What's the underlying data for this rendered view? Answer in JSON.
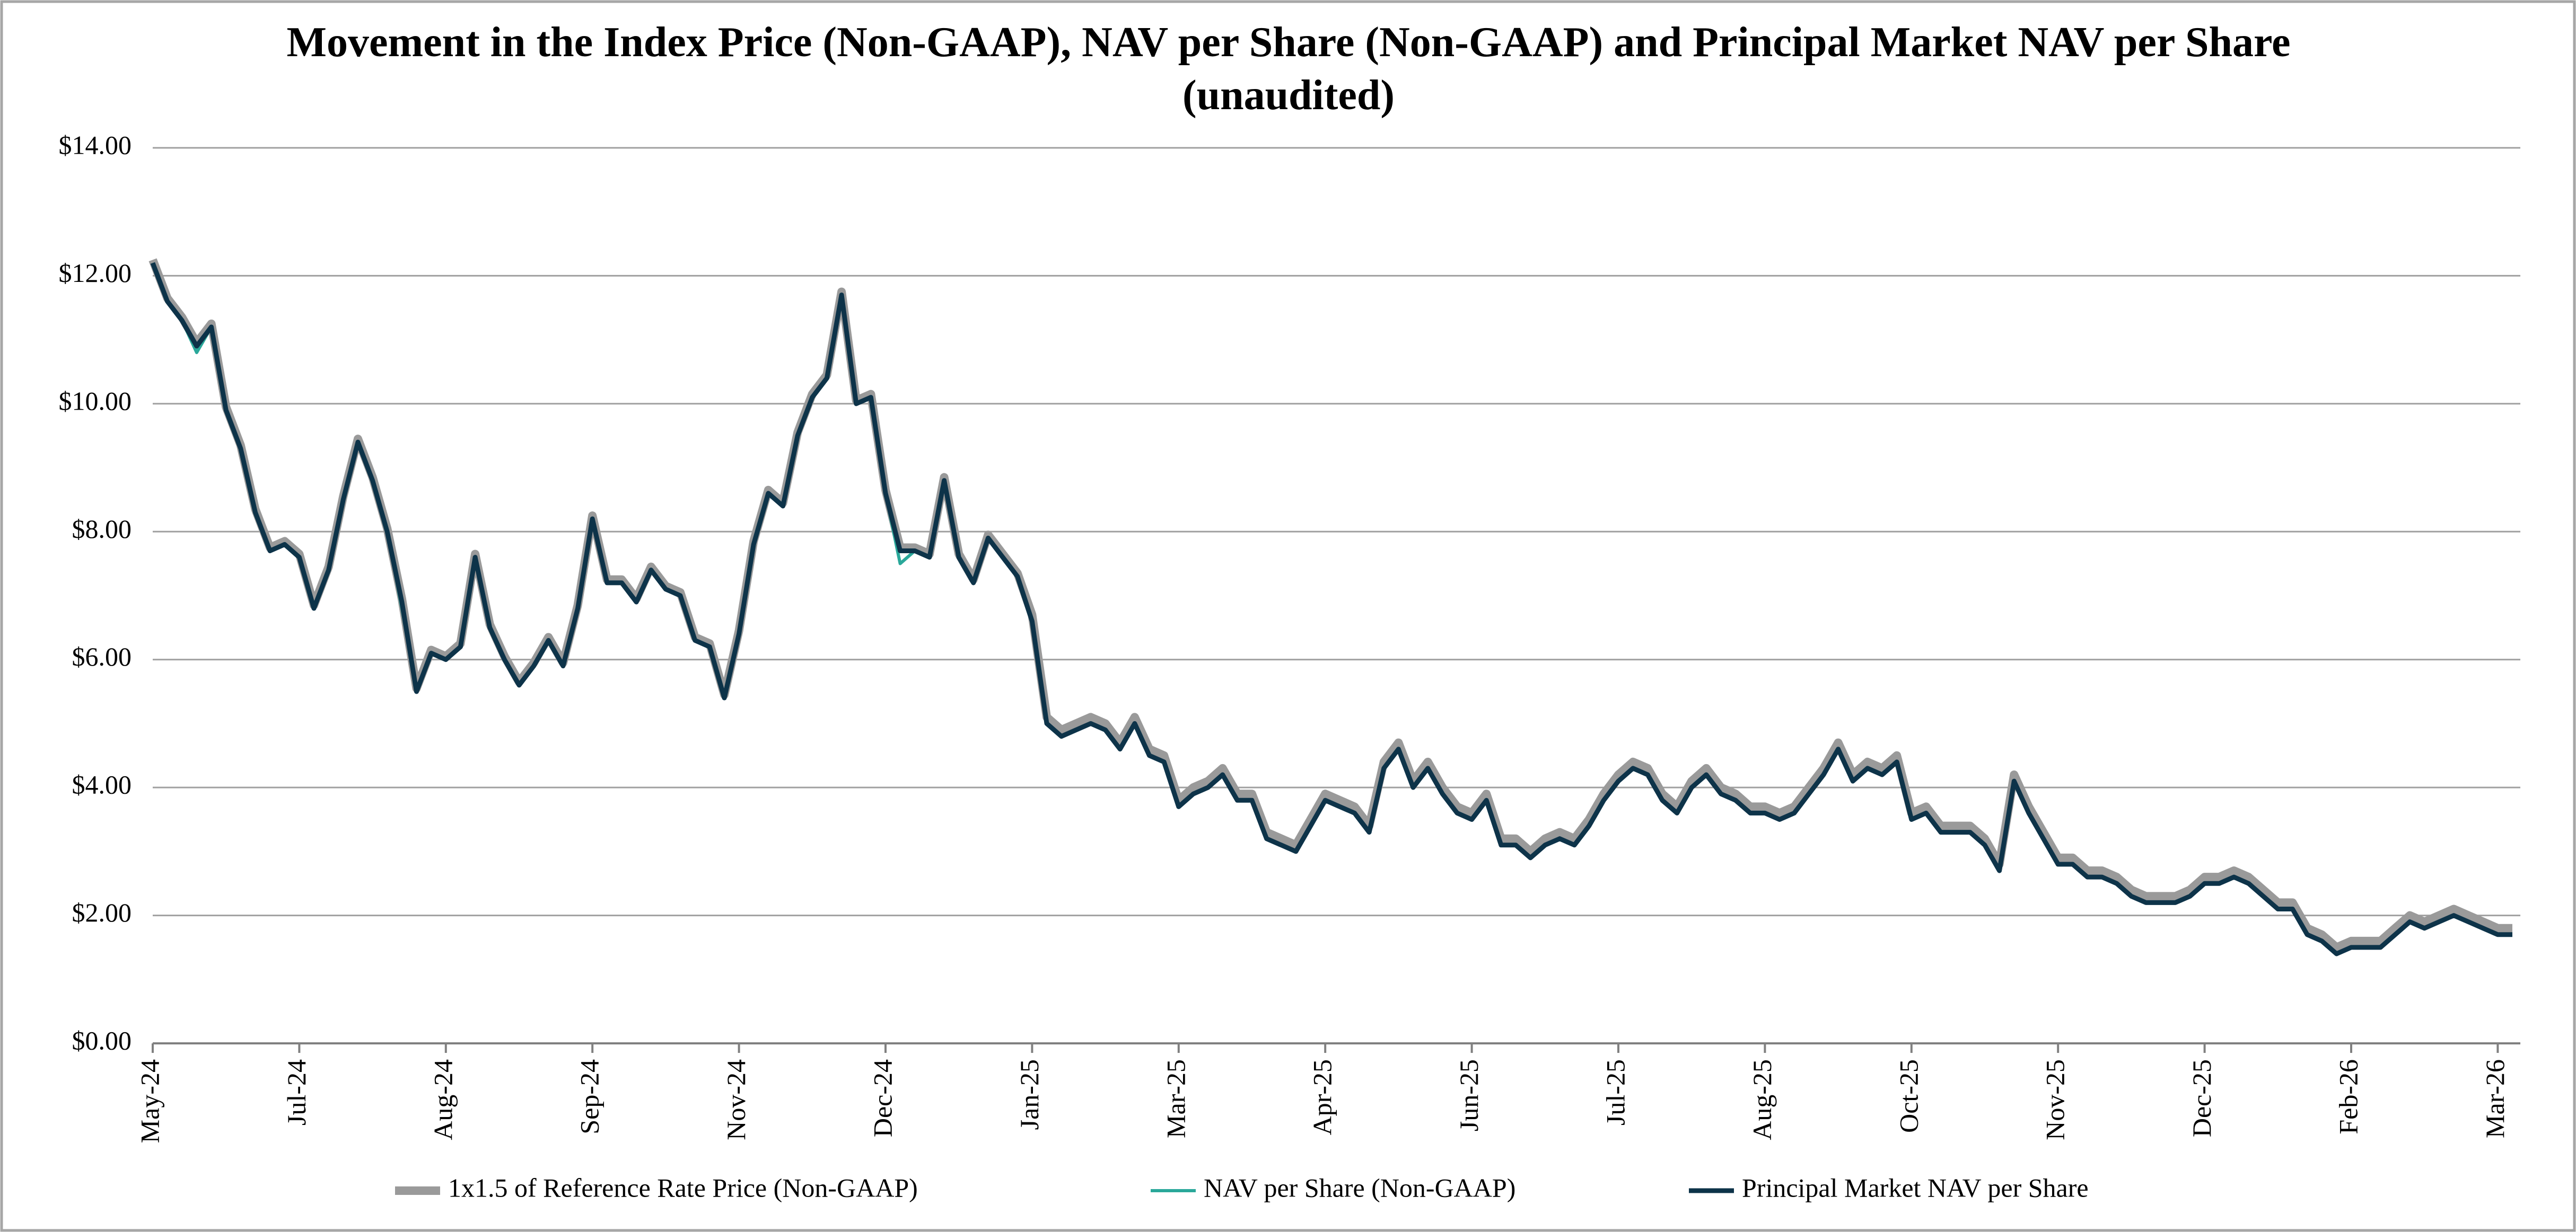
{
  "chart_data": {
    "type": "line",
    "title": "Movement in the Index Price (Non-GAAP), NAV per Share (Non-GAAP) and Principal Market NAV per Share (unaudited)",
    "categories": [
      "May-24",
      null,
      null,
      null,
      null,
      null,
      null,
      null,
      null,
      null,
      "Jul-24",
      null,
      null,
      null,
      null,
      null,
      null,
      null,
      null,
      null,
      "Aug-24",
      null,
      null,
      null,
      null,
      null,
      null,
      null,
      null,
      null,
      "Sep-24",
      null,
      null,
      null,
      null,
      null,
      null,
      null,
      null,
      null,
      "Nov-24",
      null,
      null,
      null,
      null,
      null,
      null,
      null,
      null,
      null,
      "Dec-24",
      null,
      null,
      null,
      null,
      null,
      null,
      null,
      null,
      null,
      "Jan-25",
      null,
      null,
      null,
      null,
      null,
      null,
      null,
      null,
      null,
      "Mar-25",
      null,
      null,
      null,
      null,
      null,
      null,
      null,
      null,
      null,
      "Apr-25",
      null,
      null,
      null,
      null,
      null,
      null,
      null,
      null,
      null,
      "Jun-25",
      null,
      null,
      null,
      null,
      null,
      null,
      null,
      null,
      null,
      "Jul-25",
      null,
      null,
      null,
      null,
      null,
      null,
      null,
      null,
      null,
      "Aug-25",
      null,
      null,
      null,
      null,
      null,
      null,
      null,
      null,
      null,
      "Oct-25",
      null,
      null,
      null,
      null,
      null,
      null,
      null,
      null,
      null,
      "Nov-25",
      null,
      null,
      null,
      null,
      null,
      null,
      null,
      null,
      null,
      "Dec-25",
      null,
      null,
      null,
      null,
      null,
      null,
      null,
      null,
      null,
      "Feb-26",
      null,
      null,
      null,
      null,
      null,
      null,
      null,
      null,
      null,
      "Mar-26",
      null
    ],
    "series": [
      {
        "name": "1x1.5 of Reference Rate Price (Non-GAAP)",
        "color": "#9a9a9a",
        "values": [
          12.25,
          11.65,
          11.35,
          10.95,
          11.25,
          9.95,
          9.35,
          8.35,
          7.75,
          7.85,
          7.65,
          6.85,
          7.45,
          8.55,
          9.45,
          8.85,
          8.05,
          6.95,
          5.55,
          6.15,
          6.05,
          6.25,
          7.65,
          6.55,
          6.05,
          5.65,
          5.95,
          6.35,
          5.95,
          6.85,
          8.25,
          7.25,
          7.25,
          6.95,
          7.45,
          7.15,
          7.05,
          6.35,
          6.25,
          5.45,
          6.45,
          7.85,
          8.65,
          8.45,
          9.55,
          10.15,
          10.45,
          11.75,
          10.05,
          10.15,
          8.65,
          7.75,
          7.75,
          7.65,
          8.85,
          7.65,
          7.25,
          7.95,
          7.65,
          7.35,
          6.7,
          5.1,
          4.9,
          5.0,
          5.1,
          5.0,
          4.7,
          5.1,
          4.6,
          4.5,
          3.8,
          4.0,
          4.1,
          4.3,
          3.9,
          3.9,
          3.3,
          3.2,
          3.1,
          3.5,
          3.9,
          3.8,
          3.7,
          3.4,
          4.4,
          4.7,
          4.1,
          4.4,
          4.0,
          3.7,
          3.6,
          3.9,
          3.2,
          3.2,
          3.0,
          3.2,
          3.3,
          3.2,
          3.5,
          3.9,
          4.2,
          4.4,
          4.3,
          3.9,
          3.7,
          4.1,
          4.3,
          4.0,
          3.9,
          3.7,
          3.7,
          3.6,
          3.7,
          4.0,
          4.3,
          4.7,
          4.2,
          4.4,
          4.3,
          4.5,
          3.6,
          3.7,
          3.4,
          3.4,
          3.4,
          3.2,
          2.8,
          4.2,
          3.7,
          3.3,
          2.9,
          2.9,
          2.7,
          2.7,
          2.6,
          2.4,
          2.3,
          2.3,
          2.3,
          2.4,
          2.6,
          2.6,
          2.7,
          2.6,
          2.4,
          2.2,
          2.2,
          1.8,
          1.7,
          1.5,
          1.6,
          1.6,
          1.6,
          1.8,
          2.0,
          1.9,
          2.0,
          2.1,
          2.0,
          1.9,
          1.8,
          1.8
        ]
      },
      {
        "name": "NAV per Share (Non-GAAP)",
        "color": "#2aa89a",
        "values": [
          12.2,
          11.6,
          11.3,
          10.8,
          11.2,
          9.9,
          9.3,
          8.3,
          7.7,
          7.8,
          7.6,
          6.8,
          7.4,
          8.5,
          9.4,
          8.8,
          8.0,
          6.8,
          5.5,
          6.1,
          6.0,
          6.2,
          7.6,
          6.5,
          6.0,
          5.6,
          5.9,
          6.3,
          5.9,
          6.8,
          8.2,
          7.2,
          7.2,
          6.9,
          7.4,
          7.1,
          7.0,
          6.3,
          6.2,
          5.4,
          6.4,
          7.8,
          8.6,
          8.4,
          9.5,
          10.1,
          10.4,
          11.7,
          10.0,
          10.1,
          8.6,
          7.5,
          7.7,
          7.6,
          8.8,
          7.6,
          7.2,
          7.9,
          7.6,
          7.3,
          6.6,
          5.0,
          4.8,
          4.9,
          5.0,
          4.9,
          4.6,
          5.0,
          4.5,
          4.4,
          3.7,
          3.9,
          4.0,
          4.2,
          3.8,
          3.8,
          3.2,
          3.1,
          3.0,
          3.4,
          3.8,
          3.7,
          3.6,
          3.3,
          4.3,
          4.6,
          4.0,
          4.3,
          3.9,
          3.6,
          3.5,
          3.8,
          3.1,
          3.1,
          2.9,
          3.1,
          3.2,
          3.1,
          3.4,
          3.8,
          4.1,
          4.3,
          4.2,
          3.8,
          3.6,
          4.0,
          4.2,
          3.9,
          3.8,
          3.6,
          3.6,
          3.5,
          3.6,
          3.9,
          4.2,
          4.6,
          4.1,
          4.3,
          4.2,
          4.4,
          3.5,
          3.6,
          3.3,
          3.3,
          3.3,
          3.1,
          2.7,
          4.1,
          3.6,
          3.2,
          2.8,
          2.8,
          2.6,
          2.6,
          2.5,
          2.3,
          2.2,
          2.2,
          2.2,
          2.3,
          2.5,
          2.5,
          2.6,
          2.5,
          2.3,
          2.1,
          2.1,
          1.7,
          1.6,
          1.4,
          1.5,
          1.5,
          1.5,
          1.7,
          1.9,
          1.8,
          1.9,
          2.0,
          1.9,
          1.8,
          1.7,
          1.7
        ]
      },
      {
        "name": "Principal Market NAV per Share",
        "color": "#0d3349",
        "values": [
          12.2,
          11.6,
          11.3,
          10.9,
          11.2,
          9.9,
          9.3,
          8.3,
          7.7,
          7.8,
          7.6,
          6.8,
          7.4,
          8.5,
          9.4,
          8.8,
          8.0,
          6.9,
          5.5,
          6.1,
          6.0,
          6.2,
          7.6,
          6.5,
          6.0,
          5.6,
          5.9,
          6.3,
          5.9,
          6.8,
          8.2,
          7.2,
          7.2,
          6.9,
          7.4,
          7.1,
          7.0,
          6.3,
          6.2,
          5.4,
          6.4,
          7.8,
          8.6,
          8.4,
          9.5,
          10.1,
          10.4,
          11.7,
          10.0,
          10.1,
          8.6,
          7.7,
          7.7,
          7.6,
          8.8,
          7.6,
          7.2,
          7.9,
          7.6,
          7.3,
          6.6,
          5.0,
          4.8,
          4.9,
          5.0,
          4.9,
          4.6,
          5.0,
          4.5,
          4.4,
          3.7,
          3.9,
          4.0,
          4.2,
          3.8,
          3.8,
          3.2,
          3.1,
          3.0,
          3.4,
          3.8,
          3.7,
          3.6,
          3.3,
          4.3,
          4.6,
          4.0,
          4.3,
          3.9,
          3.6,
          3.5,
          3.8,
          3.1,
          3.1,
          2.9,
          3.1,
          3.2,
          3.1,
          3.4,
          3.8,
          4.1,
          4.3,
          4.2,
          3.8,
          3.6,
          4.0,
          4.2,
          3.9,
          3.8,
          3.6,
          3.6,
          3.5,
          3.6,
          3.9,
          4.2,
          4.6,
          4.1,
          4.3,
          4.2,
          4.4,
          3.5,
          3.6,
          3.3,
          3.3,
          3.3,
          3.1,
          2.7,
          4.1,
          3.6,
          3.2,
          2.8,
          2.8,
          2.6,
          2.6,
          2.5,
          2.3,
          2.2,
          2.2,
          2.2,
          2.3,
          2.5,
          2.5,
          2.6,
          2.5,
          2.3,
          2.1,
          2.1,
          1.7,
          1.6,
          1.4,
          1.5,
          1.5,
          1.5,
          1.7,
          1.9,
          1.8,
          1.9,
          2.0,
          1.9,
          1.8,
          1.7,
          1.7
        ]
      }
    ],
    "ylim": [
      0,
      14
    ],
    "yticks": [
      {
        "value": 0,
        "label": "$0.00"
      },
      {
        "value": 2,
        "label": "$2.00"
      },
      {
        "value": 4,
        "label": "$4.00"
      },
      {
        "value": 6,
        "label": "$6.00"
      },
      {
        "value": 8,
        "label": "$8.00"
      },
      {
        "value": 10,
        "label": "$10.00"
      },
      {
        "value": 12,
        "label": "$12.00"
      },
      {
        "value": 14,
        "label": "$14.00"
      }
    ],
    "grid": true,
    "legend": "bottom"
  }
}
